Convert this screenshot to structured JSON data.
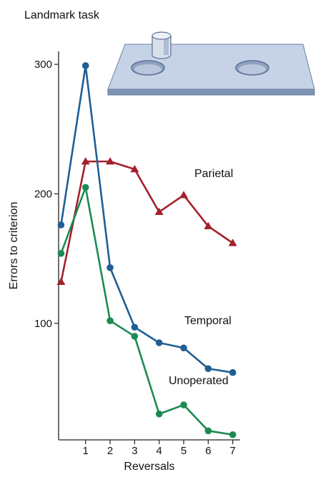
{
  "chart_data": {
    "type": "line",
    "title": "Landmark task",
    "xlabel": "Reversals",
    "ylabel": "Errors to criterion",
    "x": [
      0,
      1,
      2,
      3,
      4,
      5,
      6,
      7
    ],
    "x_tick_labels": [
      "1",
      "2",
      "3",
      "4",
      "5",
      "6",
      "7"
    ],
    "y_ticks": [
      100,
      200,
      300
    ],
    "y_tick_labels": [
      "100",
      "200",
      "300"
    ],
    "xlim": [
      -0.1,
      7.3
    ],
    "ylim": [
      10,
      310
    ],
    "grid": false,
    "series": [
      {
        "name": "Parietal",
        "color": "#a3202c",
        "marker": "triangle",
        "values": [
          132,
          225,
          225,
          219,
          186,
          199,
          175,
          162
        ]
      },
      {
        "name": "Temporal",
        "color": "#1f5f94",
        "marker": "circle",
        "values": [
          176,
          299,
          143,
          97,
          85,
          81,
          65,
          62
        ]
      },
      {
        "name": "Unoperated",
        "color": "#1c8a52",
        "marker": "circle",
        "values": [
          154,
          205,
          102,
          90,
          30,
          37,
          17,
          14
        ]
      }
    ]
  },
  "illustration": {
    "name": "landmark-board-illustration",
    "colors": {
      "top": "#c6d2e6",
      "front": "#7f93b4",
      "side": "#9aabc8",
      "edge": "#6b7fa0"
    }
  }
}
